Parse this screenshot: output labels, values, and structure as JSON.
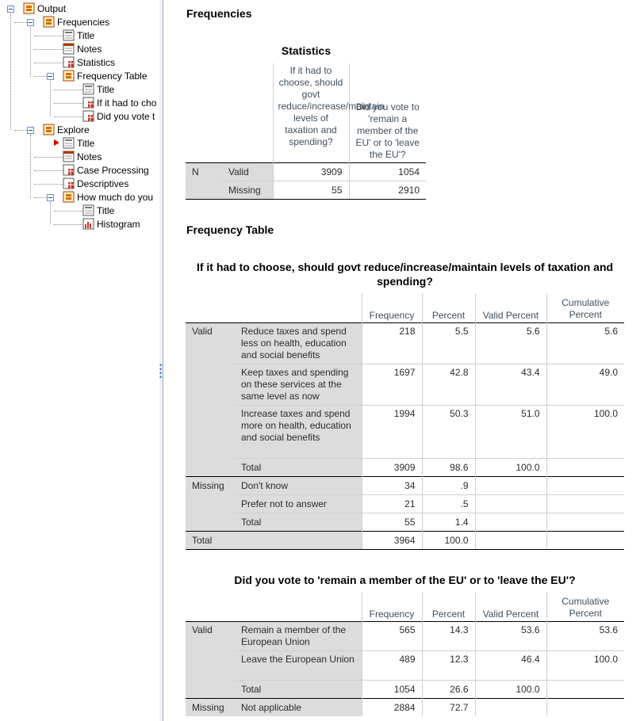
{
  "nav": {
    "items": [
      {
        "label": "Output",
        "icon": "output-book-icon"
      },
      {
        "label": "Frequencies",
        "icon": "output-book-icon"
      },
      {
        "label": "Title",
        "icon": "title-doc-icon"
      },
      {
        "label": "Notes",
        "icon": "notes-doc-icon"
      },
      {
        "label": "Statistics",
        "icon": "table-doc-icon"
      },
      {
        "label": "Frequency Table",
        "icon": "output-book-icon"
      },
      {
        "label": "Title",
        "icon": "title-doc-icon"
      },
      {
        "label": "If it had to cho",
        "icon": "table-doc-icon"
      },
      {
        "label": "Did you vote t",
        "icon": "table-doc-icon"
      },
      {
        "label": "Explore",
        "icon": "output-book-icon"
      },
      {
        "label": "Title",
        "icon": "title-doc-icon"
      },
      {
        "label": "Notes",
        "icon": "notes-doc-icon"
      },
      {
        "label": "Case Processing",
        "icon": "table-doc-icon"
      },
      {
        "label": "Descriptives",
        "icon": "table-doc-icon"
      },
      {
        "label": "How much do you",
        "icon": "output-book-icon"
      },
      {
        "label": "Title",
        "icon": "title-doc-icon"
      },
      {
        "label": "Histogram",
        "icon": "chart-doc-icon"
      }
    ]
  },
  "content": {
    "heading_frequencies": "Frequencies",
    "stats": {
      "title": "Statistics",
      "col1": "If it had to choose, should govt reduce/increase/maintain levels of taxation and spending?",
      "col2": "Did you vote to 'remain a member of the EU' or to 'leave the EU'?",
      "n_label": "N",
      "rows": [
        {
          "label": "Valid",
          "v1": "3909",
          "v2": "1054"
        },
        {
          "label": "Missing",
          "v1": "55",
          "v2": "2910"
        }
      ]
    },
    "heading_freq_table": "Frequency Table",
    "tax": {
      "title": "If it had to choose, should govt reduce/increase/maintain levels of taxation and spending?",
      "headers": {
        "freq": "Frequency",
        "pct": "Percent",
        "valid": "Valid Percent",
        "cum": "Cumulative Percent"
      },
      "valid_label": "Valid",
      "missing_label": "Missing",
      "total_label": "Total",
      "valid_rows": [
        {
          "label": "Reduce taxes and spend less on health, education and social benefits",
          "freq": "218",
          "pct": "5.5",
          "valid": "5.6",
          "cum": "5.6"
        },
        {
          "label": "Keep taxes and spending on these services at the same level as now",
          "freq": "1697",
          "pct": "42.8",
          "valid": "43.4",
          "cum": "49.0"
        },
        {
          "label": "Increase taxes and spend more on health, education and social benefits",
          "freq": "1994",
          "pct": "50.3",
          "valid": "51.0",
          "cum": "100.0"
        },
        {
          "label": "Total",
          "freq": "3909",
          "pct": "98.6",
          "valid": "100.0",
          "cum": ""
        }
      ],
      "missing_rows": [
        {
          "label": "Don't know",
          "freq": "34",
          "pct": ".9"
        },
        {
          "label": "Prefer not to answer",
          "freq": "21",
          "pct": ".5"
        },
        {
          "label": "Total",
          "freq": "55",
          "pct": "1.4"
        }
      ],
      "grand_total": {
        "freq": "3964",
        "pct": "100.0"
      }
    },
    "eu": {
      "title": "Did you vote to 'remain a member of the EU' or to 'leave the EU'?",
      "headers": {
        "freq": "Frequency",
        "pct": "Percent",
        "valid": "Valid Percent",
        "cum": "Cumulative Percent"
      },
      "valid_label": "Valid",
      "missing_label": "Missing",
      "valid_rows": [
        {
          "label": "Remain a member of the European Union",
          "freq": "565",
          "pct": "14.3",
          "valid": "53.6",
          "cum": "53.6"
        },
        {
          "label": "Leave the European Union",
          "freq": "489",
          "pct": "12.3",
          "valid": "46.4",
          "cum": "100.0"
        },
        {
          "label": "Total",
          "freq": "1054",
          "pct": "26.6",
          "valid": "100.0",
          "cum": ""
        }
      ],
      "missing_rows": [
        {
          "label": "Not applicable",
          "freq": "2884",
          "pct": "72.7"
        }
      ]
    }
  },
  "colors": {
    "accent": "#3b6fd1",
    "row_label_bg": "#dcdcdc",
    "header_text": "#3f4f5f",
    "current_marker": "#d40000"
  }
}
